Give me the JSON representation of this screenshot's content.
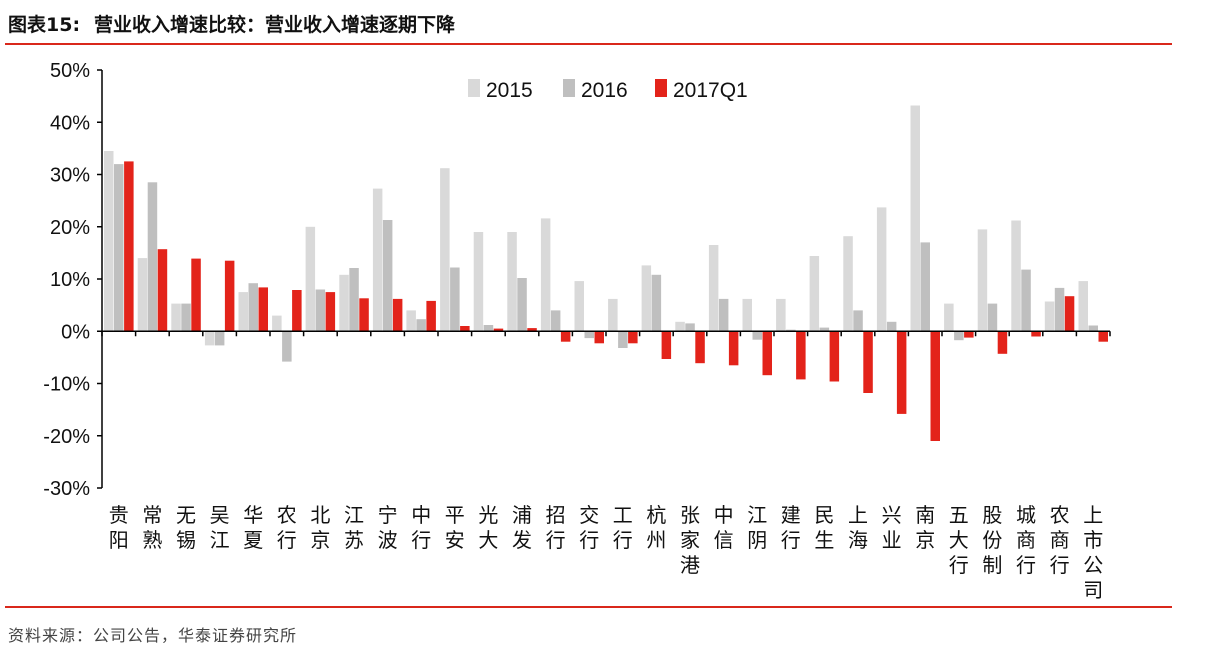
{
  "figure": {
    "label": "图表15:",
    "title": "营业收入增速比较：营业收入增速逐期下降",
    "source": "资料来源：公司公告，华泰证券研究所"
  },
  "colors": {
    "s2015": "#d9d9d9",
    "s2016": "#bfbfbf",
    "s2017Q1": "#e3231a",
    "rule": "#d9281b"
  },
  "chart_data": {
    "type": "bar",
    "title": "营业收入增速比较：营业收入增速逐期下降",
    "xlabel": "",
    "ylabel": "",
    "ylim": [
      -30,
      50
    ],
    "yticks": [
      "50%",
      "40%",
      "30%",
      "20%",
      "10%",
      "0%",
      "-10%",
      "-20%",
      "-30%"
    ],
    "unit": "%",
    "legend_position": "top",
    "grid": false,
    "categories": [
      "贵阳",
      "常熟",
      "无锡",
      "吴江",
      "华夏",
      "农行",
      "北京",
      "江苏",
      "宁波",
      "中行",
      "平安",
      "光大",
      "浦发",
      "招行",
      "交行",
      "工行",
      "杭州",
      "张家港",
      "中信",
      "江阴",
      "建行",
      "民生",
      "上海",
      "兴业",
      "南京",
      "五大行",
      "股份制",
      "城商行",
      "农商行",
      "上市公司"
    ],
    "series": [
      {
        "name": "2015",
        "values": [
          34.5,
          14,
          5.3,
          -2.7,
          7.5,
          3,
          20,
          10.8,
          27.3,
          4,
          31.2,
          19,
          19,
          21.6,
          9.6,
          6.2,
          12.6,
          1.8,
          16.5,
          6.2,
          6.2,
          14.4,
          18.2,
          23.7,
          43.2,
          5.3,
          19.5,
          21.2,
          5.7,
          9.6
        ]
      },
      {
        "name": "2016",
        "values": [
          32,
          28.5,
          5.3,
          -2.7,
          9.2,
          -5.8,
          8,
          12.1,
          21.3,
          2.3,
          12.2,
          1.2,
          10.2,
          4,
          -1.3,
          -3.2,
          10.8,
          1.5,
          6.2,
          -1.6,
          0.3,
          0.7,
          4,
          1.8,
          17,
          -1.7,
          5.3,
          11.8,
          8.3,
          1.1
        ]
      },
      {
        "name": "2017Q1",
        "values": [
          32.5,
          15.7,
          13.9,
          13.5,
          8.4,
          7.9,
          7.5,
          6.3,
          6.2,
          5.8,
          1,
          0.5,
          0.6,
          -2,
          -2.3,
          -2.3,
          -5.3,
          -6.1,
          -6.5,
          -8.4,
          -9.2,
          -9.6,
          -11.8,
          -15.8,
          -21,
          -1.2,
          -4.3,
          -1,
          6.7,
          -2
        ]
      }
    ]
  }
}
